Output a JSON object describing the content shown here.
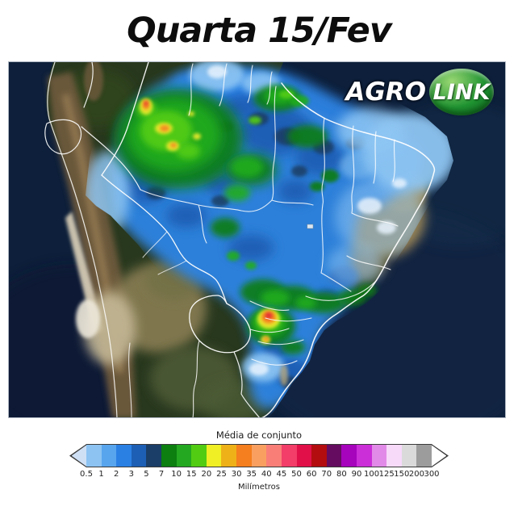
{
  "title": "Quarta 15/Fev",
  "logo": {
    "part1": "AGRO",
    "part2": "LINK",
    "ball_color": "#1f9331"
  },
  "colorbar": {
    "title": "Média de conjunto",
    "unit": "Milímetros",
    "tick_labels": [
      "0.5",
      "1",
      "2",
      "3",
      "5",
      "7",
      "10",
      "15",
      "20",
      "25",
      "30",
      "35",
      "40",
      "45",
      "50",
      "60",
      "70",
      "80",
      "90",
      "100",
      "125",
      "150",
      "200",
      "300"
    ],
    "segment_colors": [
      "#8cc3f2",
      "#58a5ee",
      "#2b80e4",
      "#1d5fb5",
      "#1b3e68",
      "#0c7f10",
      "#24a821",
      "#52cc13",
      "#f0ee25",
      "#eeb118",
      "#f57e1e",
      "#f9a061",
      "#fa7e78",
      "#f23e69",
      "#e11048",
      "#b30d10",
      "#650c60",
      "#a603bd",
      "#cb2fd8",
      "#e28ae8",
      "#f7d9fa",
      "#dadada",
      "#9c9c9c"
    ],
    "under_arrow_color": "#cfe0f5",
    "over_arrow_color": "#ffffff"
  }
}
